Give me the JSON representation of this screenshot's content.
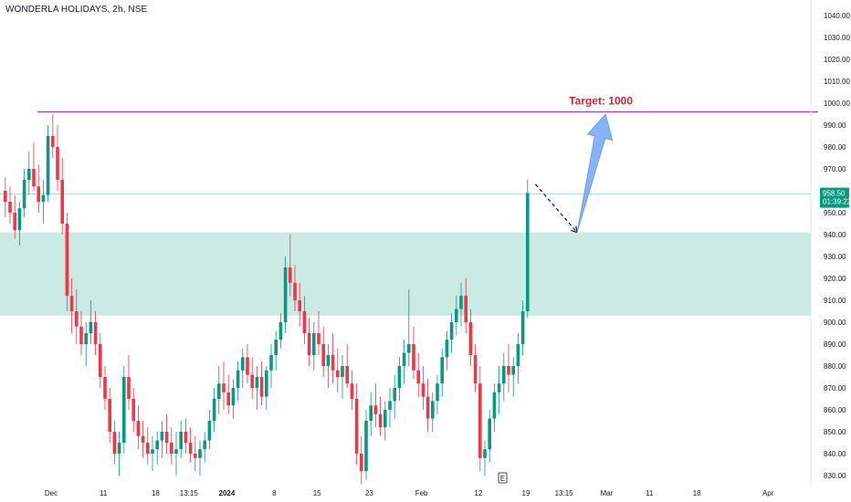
{
  "header": {
    "title": "WONDERLA HOLIDAYS, 2h, NSE"
  },
  "colors": {
    "up": "#089981",
    "down": "#f23645",
    "zone": "#c9ebe4",
    "resistance": "#b03fb4",
    "arrow": "#7faff4",
    "target_text": "#d0243b",
    "price_label": "#089981"
  },
  "chart_data": {
    "type": "candlestick",
    "symbol": "WONDERLA HOLIDAYS",
    "interval": "2h",
    "exchange": "NSE",
    "ylim": [
      825,
      1045
    ],
    "y_ticks": [
      830,
      840,
      850,
      860,
      870,
      880,
      890,
      900,
      910,
      920,
      930,
      940,
      950,
      960,
      970,
      980,
      990,
      1000,
      1010,
      1020,
      1030,
      1040
    ],
    "x_ticks": [
      {
        "label": "Dec",
        "i": 10,
        "bold": false
      },
      {
        "label": "11",
        "i": 21,
        "bold": false
      },
      {
        "label": "18",
        "i": 32,
        "bold": false
      },
      {
        "label": "13:15",
        "i": 39,
        "bold": false
      },
      {
        "label": "2024",
        "i": 47,
        "bold": true
      },
      {
        "label": "8",
        "i": 57,
        "bold": false
      },
      {
        "label": "15",
        "i": 66,
        "bold": false
      },
      {
        "label": "23",
        "i": 77,
        "bold": false
      },
      {
        "label": "Feb",
        "i": 88,
        "bold": false
      },
      {
        "label": "12",
        "i": 100,
        "bold": false
      },
      {
        "label": "19",
        "i": 110,
        "bold": false
      },
      {
        "label": "13:15",
        "i": 118,
        "bold": false
      },
      {
        "label": "Mar",
        "i": 127,
        "bold": false
      },
      {
        "label": "11",
        "i": 136,
        "bold": false
      },
      {
        "label": "18",
        "i": 146,
        "bold": false
      },
      {
        "label": "Apr",
        "i": 161,
        "bold": false
      }
    ],
    "candles": [
      [
        960,
        966,
        948,
        955
      ],
      [
        955,
        962,
        945,
        950
      ],
      [
        950,
        958,
        938,
        942
      ],
      [
        942,
        955,
        935,
        952
      ],
      [
        952,
        970,
        948,
        965
      ],
      [
        965,
        978,
        958,
        970
      ],
      [
        970,
        982,
        960,
        962
      ],
      [
        962,
        972,
        950,
        955
      ],
      [
        955,
        965,
        945,
        958
      ],
      [
        958,
        990,
        955,
        985
      ],
      [
        985,
        995,
        975,
        980
      ],
      [
        980,
        990,
        960,
        965
      ],
      [
        965,
        975,
        940,
        945
      ],
      [
        945,
        950,
        905,
        912
      ],
      [
        912,
        920,
        895,
        905
      ],
      [
        905,
        915,
        890,
        898
      ],
      [
        898,
        905,
        885,
        890
      ],
      [
        890,
        900,
        880,
        895
      ],
      [
        895,
        910,
        890,
        900
      ],
      [
        900,
        905,
        885,
        890
      ],
      [
        890,
        895,
        870,
        875
      ],
      [
        875,
        880,
        860,
        865
      ],
      [
        865,
        870,
        845,
        850
      ],
      [
        850,
        855,
        835,
        840
      ],
      [
        840,
        850,
        830,
        845
      ],
      [
        845,
        880,
        840,
        875
      ],
      [
        875,
        885,
        860,
        865
      ],
      [
        865,
        870,
        850,
        855
      ],
      [
        855,
        862,
        842,
        848
      ],
      [
        848,
        855,
        838,
        845
      ],
      [
        845,
        852,
        835,
        840
      ],
      [
        840,
        848,
        832,
        842
      ],
      [
        842,
        850,
        835,
        846
      ],
      [
        846,
        855,
        838,
        850
      ],
      [
        850,
        858,
        840,
        845
      ],
      [
        845,
        852,
        835,
        840
      ],
      [
        840,
        850,
        830,
        842
      ],
      [
        842,
        855,
        838,
        850
      ],
      [
        850,
        856,
        840,
        845
      ],
      [
        845,
        852,
        836,
        840
      ],
      [
        840,
        848,
        832,
        838
      ],
      [
        838,
        846,
        830,
        842
      ],
      [
        842,
        850,
        836,
        846
      ],
      [
        846,
        860,
        842,
        855
      ],
      [
        855,
        870,
        850,
        865
      ],
      [
        865,
        880,
        858,
        872
      ],
      [
        872,
        882,
        860,
        868
      ],
      [
        868,
        876,
        858,
        862
      ],
      [
        862,
        874,
        856,
        870
      ],
      [
        870,
        882,
        864,
        878
      ],
      [
        878,
        888,
        870,
        884
      ],
      [
        884,
        890,
        872,
        876
      ],
      [
        876,
        884,
        865,
        870
      ],
      [
        870,
        880,
        860,
        875
      ],
      [
        875,
        882,
        862,
        866
      ],
      [
        866,
        880,
        860,
        878
      ],
      [
        878,
        890,
        870,
        885
      ],
      [
        885,
        896,
        878,
        892
      ],
      [
        892,
        904,
        888,
        900
      ],
      [
        900,
        930,
        895,
        925
      ],
      [
        925,
        940,
        912,
        918
      ],
      [
        918,
        926,
        905,
        910
      ],
      [
        910,
        918,
        898,
        905
      ],
      [
        905,
        912,
        890,
        895
      ],
      [
        895,
        902,
        880,
        885
      ],
      [
        885,
        900,
        878,
        895
      ],
      [
        895,
        905,
        885,
        890
      ],
      [
        890,
        898,
        875,
        880
      ],
      [
        880,
        890,
        870,
        885
      ],
      [
        885,
        895,
        872,
        878
      ],
      [
        878,
        888,
        868,
        875
      ],
      [
        875,
        885,
        865,
        880
      ],
      [
        880,
        890,
        870,
        872
      ],
      [
        872,
        878,
        860,
        865
      ],
      [
        865,
        872,
        835,
        840
      ],
      [
        840,
        848,
        826,
        832
      ],
      [
        832,
        860,
        828,
        855
      ],
      [
        855,
        868,
        848,
        862
      ],
      [
        862,
        872,
        852,
        858
      ],
      [
        858,
        866,
        848,
        852
      ],
      [
        852,
        864,
        846,
        860
      ],
      [
        860,
        870,
        852,
        864
      ],
      [
        864,
        876,
        856,
        870
      ],
      [
        870,
        884,
        864,
        880
      ],
      [
        880,
        892,
        872,
        886
      ],
      [
        886,
        915,
        880,
        890
      ],
      [
        890,
        898,
        874,
        878
      ],
      [
        878,
        886,
        866,
        872
      ],
      [
        872,
        880,
        860,
        866
      ],
      [
        866,
        874,
        850,
        856
      ],
      [
        856,
        868,
        850,
        864
      ],
      [
        864,
        876,
        858,
        872
      ],
      [
        872,
        888,
        866,
        884
      ],
      [
        884,
        896,
        878,
        892
      ],
      [
        892,
        904,
        886,
        900
      ],
      [
        900,
        912,
        894,
        906
      ],
      [
        906,
        918,
        898,
        912
      ],
      [
        912,
        920,
        895,
        900
      ],
      [
        900,
        906,
        880,
        885
      ],
      [
        885,
        890,
        868,
        872
      ],
      [
        872,
        880,
        832,
        838
      ],
      [
        838,
        846,
        830,
        842
      ],
      [
        842,
        860,
        836,
        856
      ],
      [
        856,
        872,
        850,
        868
      ],
      [
        868,
        880,
        858,
        872
      ],
      [
        872,
        886,
        864,
        880
      ],
      [
        880,
        890,
        868,
        876
      ],
      [
        876,
        884,
        866,
        880
      ],
      [
        880,
        895,
        872,
        890
      ],
      [
        890,
        910,
        885,
        905
      ],
      [
        905,
        965,
        902,
        959
      ]
    ],
    "last_price": "958.50",
    "countdown": "01:39:22",
    "demand_zone": [
      903,
      941
    ],
    "resistance_level": 996,
    "projection_dashed": [
      [
        112,
        963
      ],
      [
        120,
        941
      ]
    ],
    "projection_arrow": [
      [
        120,
        941
      ],
      [
        126,
        995
      ]
    ],
    "target_label": "Target: 1000",
    "event_marker": "E",
    "event_marker_i": 105
  }
}
